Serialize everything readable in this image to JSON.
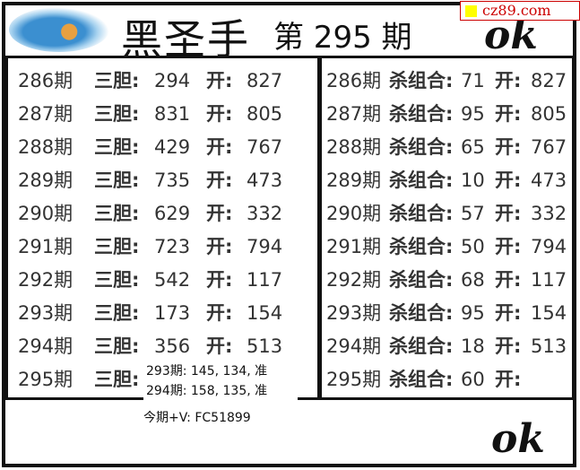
{
  "header": {
    "title": "黑圣手",
    "issue": "第 295 期",
    "watermark": "cz89.com",
    "ok_mark": "ok"
  },
  "left": {
    "rows": [
      {
        "period": "286期",
        "label": "三胆:",
        "value": "294",
        "open_label": "开:",
        "open": "827"
      },
      {
        "period": "287期",
        "label": "三胆:",
        "value": "831",
        "open_label": "开:",
        "open": "805"
      },
      {
        "period": "288期",
        "label": "三胆:",
        "value": "429",
        "open_label": "开:",
        "open": "767"
      },
      {
        "period": "289期",
        "label": "三胆:",
        "value": "735",
        "open_label": "开:",
        "open": "473"
      },
      {
        "period": "290期",
        "label": "三胆:",
        "value": "629",
        "open_label": "开:",
        "open": "332"
      },
      {
        "period": "291期",
        "label": "三胆:",
        "value": "723",
        "open_label": "开:",
        "open": "794"
      },
      {
        "period": "292期",
        "label": "三胆:",
        "value": "542",
        "open_label": "开:",
        "open": "117"
      },
      {
        "period": "293期",
        "label": "三胆:",
        "value": "173",
        "open_label": "开:",
        "open": "154"
      },
      {
        "period": "294期",
        "label": "三胆:",
        "value": "356",
        "open_label": "开:",
        "open": "513"
      },
      {
        "period": "295期",
        "label": "三胆:",
        "value": "",
        "open_label": "",
        "open": ""
      }
    ]
  },
  "right": {
    "rows": [
      {
        "period": "286期",
        "label": "杀组合:",
        "value": "71",
        "open_label": "开:",
        "open": "827"
      },
      {
        "period": "287期",
        "label": "杀组合:",
        "value": "95",
        "open_label": "开:",
        "open": "805"
      },
      {
        "period": "288期",
        "label": "杀组合:",
        "value": "65",
        "open_label": "开:",
        "open": "767"
      },
      {
        "period": "289期",
        "label": "杀组合:",
        "value": "10",
        "open_label": "开:",
        "open": "473"
      },
      {
        "period": "290期",
        "label": "杀组合:",
        "value": "57",
        "open_label": "开:",
        "open": "332"
      },
      {
        "period": "291期",
        "label": "杀组合:",
        "value": "50",
        "open_label": "开:",
        "open": "794"
      },
      {
        "period": "292期",
        "label": "杀组合:",
        "value": "68",
        "open_label": "开:",
        "open": "117"
      },
      {
        "period": "293期",
        "label": "杀组合:",
        "value": "95",
        "open_label": "开:",
        "open": "154"
      },
      {
        "period": "294期",
        "label": "杀组合:",
        "value": "18",
        "open_label": "开:",
        "open": "513"
      },
      {
        "period": "295期",
        "label": "杀组合:",
        "value": "60",
        "open_label": "开:",
        "open": ""
      }
    ]
  },
  "overlay": {
    "lines": [
      "293期: 145, 134, 准",
      "294期: 158, 135, 准"
    ],
    "contact": "今期+V: FC51899"
  }
}
